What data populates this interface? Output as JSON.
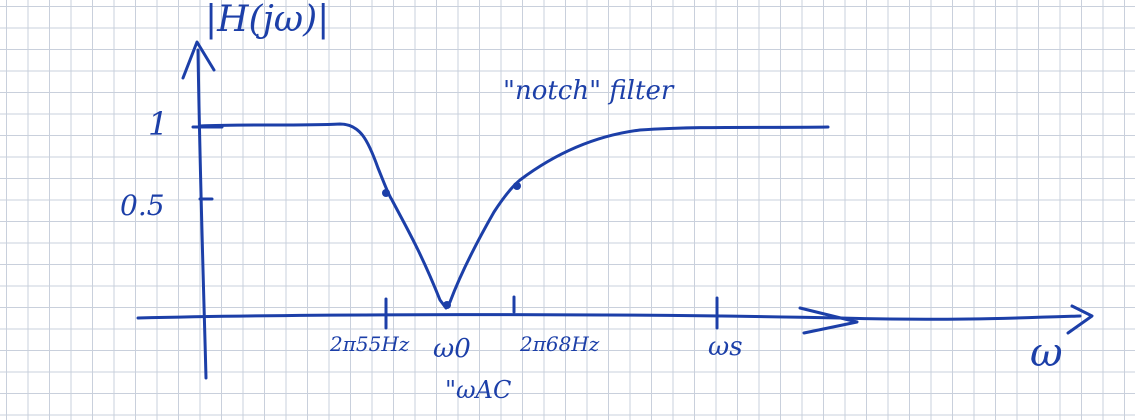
{
  "colors": {
    "ink": "#1c3fa8",
    "grid": "#c9d0dc",
    "paper": "#ffffff"
  },
  "labels": {
    "y_axis": "|H(jω)|",
    "annotation": "\"notch\" filter",
    "tick_y_1": "1",
    "tick_y_05": "0.5",
    "tick_x_1": "2π55Hz",
    "tick_x_2": "ω0",
    "tick_x_2_note": "\"ωAC",
    "tick_x_3": "2π68Hz",
    "tick_x_4": "ωs",
    "x_axis": "ω"
  }
}
